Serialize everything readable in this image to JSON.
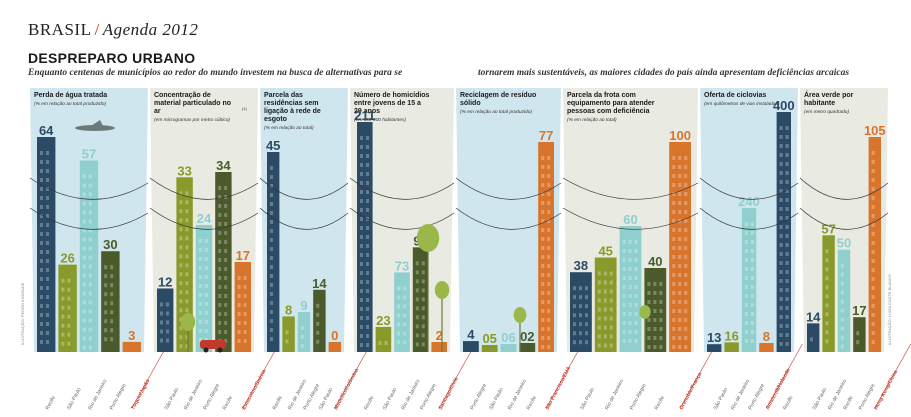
{
  "header": {
    "brand": "BRASIL",
    "section": "Agenda 2012"
  },
  "title": "DESPREPARO URBANO",
  "subtitle_left": "Enquanto centenas de municípios ao redor do mundo investem na busca de alternativas para se",
  "subtitle_right": "tornarem mais  sustentáveis, as maiores cidades do país ainda apresentam deficiências arcaicas",
  "credit_left": "ILUSTRAÇÃO: PEDRO ANDRADE",
  "credit_right": "ILUSTRAÇÃO: LUIZA GASTE BLANKO",
  "colors": {
    "darkblue": "#2a4a66",
    "olive": "#8a9a2a",
    "teal": "#8fcfce",
    "darkgreen": "#4a5a2a",
    "orange": "#d9742c",
    "sky": "#cfe6ee",
    "panel": "#e9eae2"
  },
  "chart_data": [
    {
      "type": "bar",
      "title": "Perda de água tratada",
      "subtitle": "(% em relação ao total produzido)",
      "categories": [
        "Recife",
        "São Paulo",
        "Rio de Janeiro",
        "Porto Alegre",
        "Tóquio/Japão"
      ],
      "values": [
        64,
        26,
        57,
        30,
        3
      ],
      "value_labels": [
        "64",
        "26",
        "57",
        "30",
        "3"
      ],
      "highlight": "Tóquio/Japão"
    },
    {
      "type": "bar",
      "title": "Concentração de material particulado no ar",
      "title_mark": "(1)",
      "subtitle": "(em microgramas por metro cúbico)",
      "categories": [
        "São Paulo",
        "Rio de Janeiro",
        "Porto Alegre",
        "Recife",
        "Estocolmo/Suécia"
      ],
      "values": [
        12,
        33,
        24,
        34,
        17
      ],
      "value_labels": [
        "12",
        "33",
        "24",
        "34",
        "17"
      ],
      "highlight": "Estocolmo/Suécia"
    },
    {
      "type": "bar",
      "title": "Parcela das residências sem ligação à rede de esgoto",
      "subtitle": "(% em relação ao total)",
      "categories": [
        "Recife",
        "Rio de Janeiro",
        "Porto Alegre",
        "São Paulo",
        "Medellín/Colômbia"
      ],
      "values": [
        45,
        8,
        9,
        14,
        0
      ],
      "value_labels": [
        "45",
        "8",
        "9",
        "14",
        "0"
      ],
      "highlight": "Medellín/Colômbia"
    },
    {
      "type": "bar",
      "title": "Número de homicídios entre jovens de 15 a 29 anos",
      "subtitle": "(em 100 000 habitantes)",
      "categories": [
        "Recife",
        "São Paulo",
        "Rio de Janeiro",
        "Porto Alegre",
        "Santiago/Chile"
      ],
      "values": [
        211,
        23,
        73,
        96,
        2
      ],
      "value_labels": [
        "211",
        "23",
        "73",
        "96",
        "2"
      ],
      "highlight": "Santiago/Chile"
    },
    {
      "type": "bar",
      "title": "Reciclagem de resíduo sólido",
      "subtitle": "(% em relação ao total produzido)",
      "categories": [
        "Porto Alegre",
        "São Paulo",
        "Rio de Janeiro",
        "Recife",
        "São Francisco/EUA"
      ],
      "values": [
        4,
        0.5,
        0.6,
        0.2,
        77
      ],
      "value_labels": [
        "4",
        "05",
        "06",
        "02",
        "77"
      ],
      "highlight": "São Francisco/EUA"
    },
    {
      "type": "bar",
      "title": "Parcela da frota com equipamento para atender pessoas com deficiência",
      "subtitle": "(% em relação ao total)",
      "categories": [
        "São Paulo",
        "Rio de Janeiro",
        "Porto Alegre",
        "Recife",
        "Grenoble/França"
      ],
      "values": [
        38,
        45,
        60,
        40,
        100
      ],
      "value_labels": [
        "38",
        "45",
        "60",
        "40",
        "100"
      ],
      "highlight": "Grenoble/França"
    },
    {
      "type": "bar",
      "title": "Oferta de ciclovias",
      "subtitle": "(em quilômetros de vias instaladas)",
      "categories": [
        "São Paulo",
        "Rio de Janeiro",
        "Porto Alegre",
        "Amsterdã/Holanda",
        "Recife"
      ],
      "values": [
        13,
        16,
        240,
        8,
        400
      ],
      "value_labels": [
        "13",
        "16",
        "240",
        "8",
        "400"
      ],
      "highlight": "Amsterdã/Holanda"
    },
    {
      "type": "bar",
      "title": "Área verde por habitante",
      "subtitle": "(em metro quadrado)",
      "categories": [
        "São Paulo",
        "Rio de Janeiro",
        "Recife",
        "Porto Alegre",
        "Hong Kong/China"
      ],
      "values": [
        14,
        57,
        50,
        17,
        105
      ],
      "value_labels": [
        "14",
        "57",
        "50",
        "17",
        "105"
      ],
      "highlight": "Hong Kong/China"
    }
  ]
}
